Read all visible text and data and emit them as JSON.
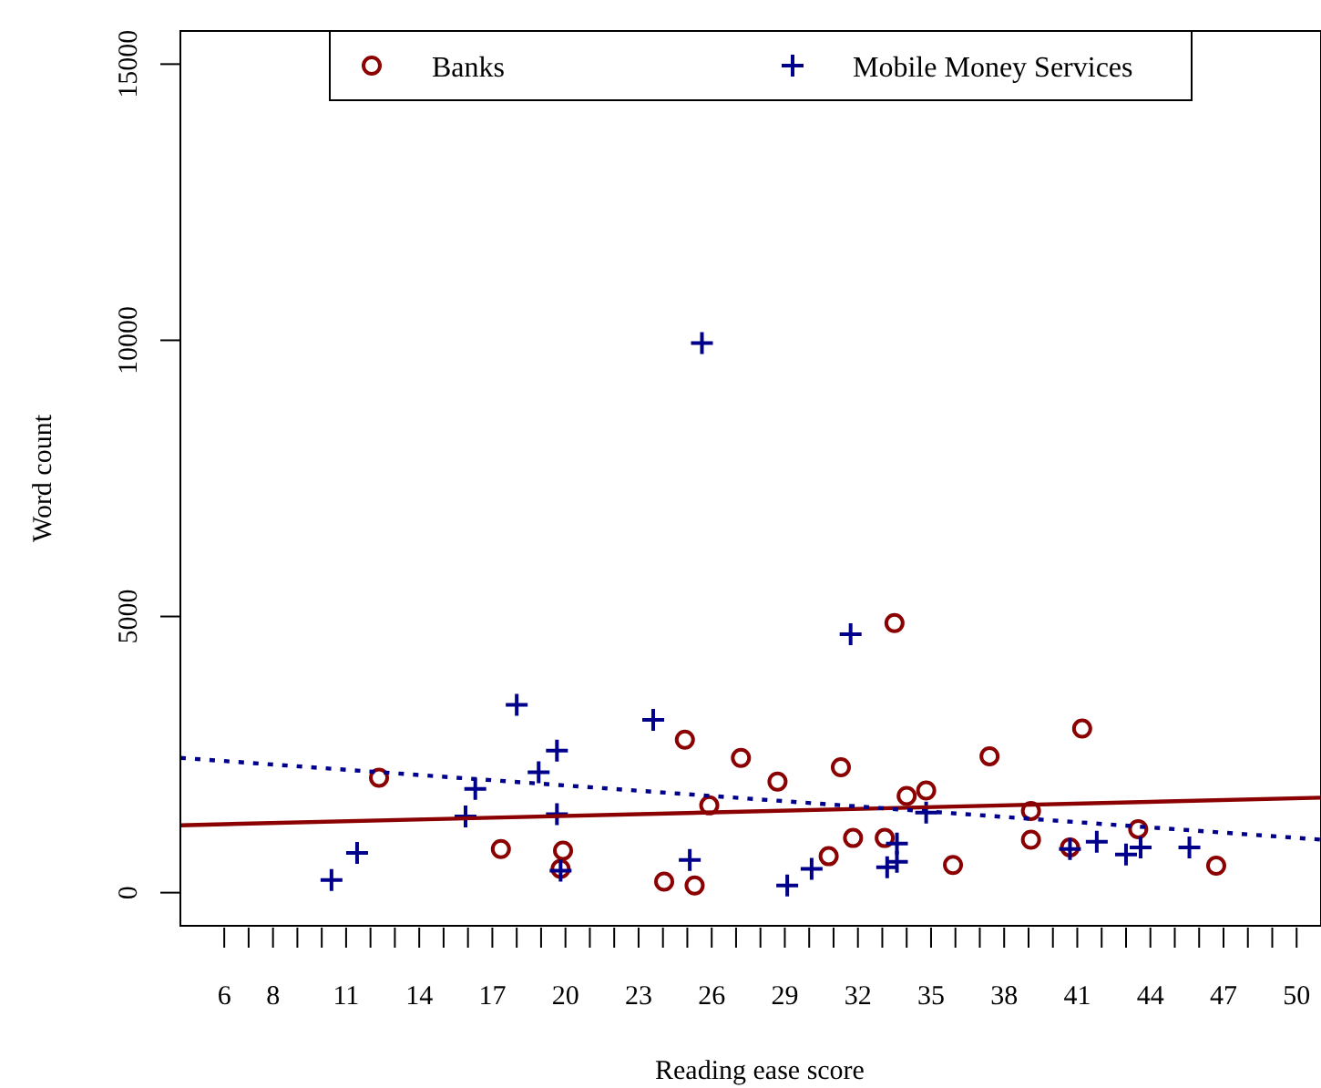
{
  "chart_data": {
    "type": "scatter",
    "xlabel": "Reading ease score",
    "ylabel": "Word count",
    "xlim": [
      4.2,
      51
    ],
    "ylim": [
      -600,
      15600
    ],
    "xticks": [
      6,
      {
        "value": 7,
        "label": null
      },
      8,
      {
        "value": 9,
        "label": null
      },
      {
        "value": 10,
        "label": null
      },
      11,
      {
        "value": 12,
        "label": null
      },
      {
        "value": 13,
        "label": null
      },
      14,
      {
        "value": 15,
        "label": null
      },
      {
        "value": 16,
        "label": null
      },
      17,
      {
        "value": 18,
        "label": null
      },
      {
        "value": 19,
        "label": null
      },
      20,
      {
        "value": 21,
        "label": null
      },
      {
        "value": 22,
        "label": null
      },
      23,
      {
        "value": 24,
        "label": null
      },
      {
        "value": 25,
        "label": null
      },
      26,
      {
        "value": 27,
        "label": null
      },
      {
        "value": 28,
        "label": null
      },
      29,
      {
        "value": 30,
        "label": null
      },
      {
        "value": 31,
        "label": null
      },
      32,
      {
        "value": 33,
        "label": null
      },
      {
        "value": 34,
        "label": null
      },
      35,
      {
        "value": 36,
        "label": null
      },
      {
        "value": 37,
        "label": null
      },
      38,
      {
        "value": 39,
        "label": null
      },
      {
        "value": 40,
        "label": null
      },
      41,
      {
        "value": 42,
        "label": null
      },
      {
        "value": 43,
        "label": null
      },
      44,
      {
        "value": 45,
        "label": null
      },
      {
        "value": 46,
        "label": null
      },
      47,
      {
        "value": 48,
        "label": null
      },
      {
        "value": 49,
        "label": null
      },
      50
    ],
    "yticks": [
      0,
      5000,
      10000,
      15000
    ],
    "grid": false,
    "legend": "top",
    "series": [
      {
        "name": "Banks",
        "marker": "circle",
        "color": "#8b0000",
        "x": [
          12.35,
          17.35,
          19.9,
          19.8,
          24.9,
          24.05,
          25.3,
          25.9,
          27.2,
          28.7,
          31.3,
          33.5,
          30.8,
          31.8,
          33.1,
          34.0,
          34.8,
          35.9,
          37.4,
          39.1,
          39.1,
          41.2,
          40.7,
          43.5,
          46.7
        ],
        "values": [
          2080,
          790,
          760,
          430,
          2770,
          200,
          130,
          1580,
          2440,
          2010,
          2270,
          4880,
          660,
          990,
          990,
          1750,
          1850,
          500,
          2470,
          1480,
          960,
          2970,
          820,
          1150,
          490
        ]
      },
      {
        "name": "Mobile Money Services",
        "marker": "cross",
        "color": "#00008b",
        "x": [
          25.6,
          18.0,
          23.6,
          19.65,
          18.9,
          16.3,
          15.9,
          19.65,
          11.45,
          10.4,
          19.8,
          25.1,
          31.7,
          29.1,
          30.1,
          33.2,
          33.6,
          33.6,
          34.8,
          40.7,
          41.8,
          43.0,
          43.6,
          45.6
        ],
        "values": [
          9950,
          3400,
          3130,
          2570,
          2180,
          1880,
          1380,
          1420,
          720,
          230,
          400,
          590,
          4680,
          130,
          430,
          460,
          560,
          890,
          1450,
          790,
          920,
          690,
          820,
          820
        ]
      },
      {
        "type": "line",
        "marker": "none",
        "line_style": "solid",
        "color": "#8b0000",
        "x": [
          4.2,
          51
        ],
        "values": [
          1220,
          1720
        ]
      },
      {
        "type": "line",
        "marker": "none",
        "line_style": "dotted",
        "color": "#00008b",
        "x": [
          4.2,
          51
        ],
        "values": [
          2440,
          960
        ]
      }
    ]
  }
}
